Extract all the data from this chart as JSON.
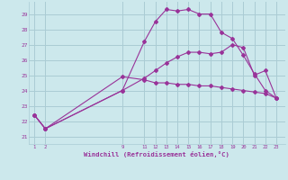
{
  "xlabel": "Windchill (Refroidissement éolien,°C)",
  "bg_color": "#cce8ec",
  "grid_color": "#aaccd4",
  "line_color": "#993399",
  "series1_x": [
    1,
    2,
    9,
    11,
    12,
    13,
    14,
    15,
    16,
    17,
    18,
    19,
    20,
    21,
    22,
    23
  ],
  "series1_y": [
    22.4,
    21.5,
    24.0,
    27.2,
    28.5,
    29.3,
    29.2,
    29.3,
    29.0,
    29.0,
    27.8,
    27.4,
    26.3,
    25.1,
    24.0,
    23.5
  ],
  "series2_x": [
    1,
    2,
    9,
    11,
    12,
    13,
    14,
    15,
    16,
    17,
    18,
    19,
    20,
    21,
    22,
    23
  ],
  "series2_y": [
    22.4,
    21.5,
    24.9,
    24.7,
    24.5,
    24.5,
    24.4,
    24.4,
    24.3,
    24.3,
    24.2,
    24.1,
    24.0,
    23.9,
    23.8,
    23.5
  ],
  "series3_x": [
    1,
    2,
    9,
    11,
    12,
    13,
    14,
    15,
    16,
    17,
    18,
    19,
    20,
    21,
    22,
    23
  ],
  "series3_y": [
    22.4,
    21.5,
    24.0,
    24.8,
    25.3,
    25.8,
    26.2,
    26.5,
    26.5,
    26.4,
    26.5,
    27.0,
    26.8,
    25.0,
    25.3,
    23.5
  ],
  "xtick_positions": [
    1,
    2,
    9,
    11,
    12,
    13,
    14,
    15,
    16,
    17,
    18,
    19,
    20,
    21,
    22,
    23
  ],
  "xtick_labels": [
    "1",
    "2",
    "9",
    "11",
    "12",
    "13",
    "14",
    "15",
    "16",
    "17",
    "18",
    "19",
    "20",
    "21",
    "22",
    "23"
  ],
  "ytick_positions": [
    21,
    22,
    23,
    24,
    25,
    26,
    27,
    28,
    29
  ],
  "ytick_labels": [
    "21",
    "22",
    "23",
    "24",
    "25",
    "26",
    "27",
    "28",
    "29"
  ],
  "ylim": [
    20.5,
    29.8
  ],
  "xlim": [
    0.5,
    23.8
  ]
}
